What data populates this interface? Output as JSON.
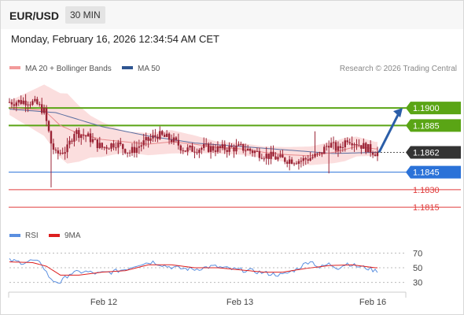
{
  "header": {
    "symbol": "EUR/USD",
    "timeframe": "30 MIN",
    "datetime": "Monday, February 16, 2026 12:34:54 AM CET"
  },
  "legend": {
    "ma20_label": "MA 20 + Bollinger Bands",
    "ma50_label": "MA 50",
    "credit": "Research © 2026 Trading Central",
    "rsi_label": "RSI",
    "ma9_label": "9MA"
  },
  "colors": {
    "candle": "#9b2335",
    "bollinger_fill": "#fbdede",
    "ma20": "#e8898b",
    "ma50": "#5a6ea0",
    "resistance": "#5aa515",
    "support": "#2b72d8",
    "pivot_red": "#e03c3c",
    "current": "#333333",
    "arrow": "#2b5ea8",
    "rsi": "#5a8fe0",
    "ma9": "#dd1f1f"
  },
  "chart_data": [
    {
      "type": "candlestick",
      "x_ticks": [
        "Feb 12",
        "Feb 13",
        "Feb 16"
      ],
      "ylim": [
        1.1805,
        1.1925
      ],
      "current_price": "1.1862",
      "levels": [
        {
          "label": "1.1900",
          "value": 1.19,
          "kind": "resistance"
        },
        {
          "label": "1.1885",
          "value": 1.1885,
          "kind": "resistance"
        },
        {
          "label": "1.1845",
          "value": 1.1845,
          "kind": "support"
        },
        {
          "label": "1.1830",
          "value": 1.183,
          "kind": "pivot"
        },
        {
          "label": "1.1815",
          "value": 1.1815,
          "kind": "pivot"
        }
      ],
      "forecast_arrow": {
        "from": 1.1862,
        "to": 1.19
      },
      "price_anchors": [
        [
          0,
          1.1905
        ],
        [
          8,
          1.1906
        ],
        [
          12,
          1.1903
        ],
        [
          15,
          1.1897
        ],
        [
          18,
          1.187
        ],
        [
          20,
          1.186
        ],
        [
          25,
          1.1865
        ],
        [
          28,
          1.188
        ],
        [
          34,
          1.1875
        ],
        [
          40,
          1.1866
        ],
        [
          46,
          1.187
        ],
        [
          52,
          1.1862
        ],
        [
          58,
          1.187
        ],
        [
          64,
          1.1877
        ],
        [
          70,
          1.1873
        ],
        [
          76,
          1.1864
        ],
        [
          84,
          1.1866
        ],
        [
          90,
          1.1865
        ],
        [
          100,
          1.1866
        ],
        [
          110,
          1.186
        ],
        [
          118,
          1.1856
        ],
        [
          126,
          1.1855
        ],
        [
          134,
          1.186
        ],
        [
          138,
          1.187
        ],
        [
          142,
          1.1864
        ],
        [
          146,
          1.1874
        ],
        [
          150,
          1.187
        ],
        [
          154,
          1.1866
        ],
        [
          158,
          1.1862
        ]
      ],
      "ma20_anchors": [
        [
          0,
          1.19
        ],
        [
          15,
          1.1898
        ],
        [
          22,
          1.1885
        ],
        [
          30,
          1.1878
        ],
        [
          40,
          1.1873
        ],
        [
          50,
          1.1871
        ],
        [
          60,
          1.1869
        ],
        [
          70,
          1.1871
        ],
        [
          80,
          1.1869
        ],
        [
          90,
          1.1866
        ],
        [
          100,
          1.1865
        ],
        [
          110,
          1.1862
        ],
        [
          120,
          1.186
        ],
        [
          130,
          1.1859
        ],
        [
          140,
          1.1862
        ],
        [
          150,
          1.1867
        ],
        [
          158,
          1.1865
        ]
      ],
      "ma50_anchors": [
        [
          0,
          1.1899
        ],
        [
          20,
          1.1896
        ],
        [
          40,
          1.1884
        ],
        [
          60,
          1.1876
        ],
        [
          80,
          1.187
        ],
        [
          100,
          1.1867
        ],
        [
          120,
          1.1864
        ],
        [
          140,
          1.1861
        ],
        [
          158,
          1.1862
        ]
      ],
      "band_width_anchors": [
        [
          0,
          0.0006
        ],
        [
          15,
          0.0022
        ],
        [
          25,
          0.003
        ],
        [
          35,
          0.0018
        ],
        [
          50,
          0.0009
        ],
        [
          70,
          0.001
        ],
        [
          90,
          0.0005
        ],
        [
          110,
          0.0005
        ],
        [
          130,
          0.0008
        ],
        [
          145,
          0.001
        ],
        [
          158,
          0.0006
        ]
      ]
    },
    {
      "type": "line",
      "name": "RSI",
      "ylim": [
        20,
        80
      ],
      "y_ticks": [
        70,
        50,
        30
      ],
      "rsi_anchors": [
        [
          0,
          60
        ],
        [
          6,
          57
        ],
        [
          10,
          60
        ],
        [
          14,
          55
        ],
        [
          18,
          33
        ],
        [
          22,
          30
        ],
        [
          26,
          42
        ],
        [
          32,
          45
        ],
        [
          38,
          42
        ],
        [
          44,
          44
        ],
        [
          50,
          48
        ],
        [
          56,
          55
        ],
        [
          62,
          58
        ],
        [
          68,
          52
        ],
        [
          74,
          49
        ],
        [
          80,
          48
        ],
        [
          88,
          52
        ],
        [
          96,
          48
        ],
        [
          104,
          46
        ],
        [
          112,
          42
        ],
        [
          118,
          40
        ],
        [
          124,
          48
        ],
        [
          130,
          60
        ],
        [
          134,
          50
        ],
        [
          138,
          55
        ],
        [
          142,
          50
        ],
        [
          146,
          56
        ],
        [
          150,
          52
        ],
        [
          154,
          50
        ],
        [
          158,
          46
        ]
      ],
      "ma9_anchors": [
        [
          0,
          58
        ],
        [
          10,
          57
        ],
        [
          16,
          52
        ],
        [
          22,
          40
        ],
        [
          30,
          40
        ],
        [
          40,
          44
        ],
        [
          50,
          46
        ],
        [
          60,
          54
        ],
        [
          70,
          54
        ],
        [
          80,
          50
        ],
        [
          90,
          50
        ],
        [
          100,
          47
        ],
        [
          110,
          44
        ],
        [
          118,
          44
        ],
        [
          128,
          49
        ],
        [
          138,
          53
        ],
        [
          148,
          54
        ],
        [
          158,
          50
        ]
      ]
    }
  ]
}
